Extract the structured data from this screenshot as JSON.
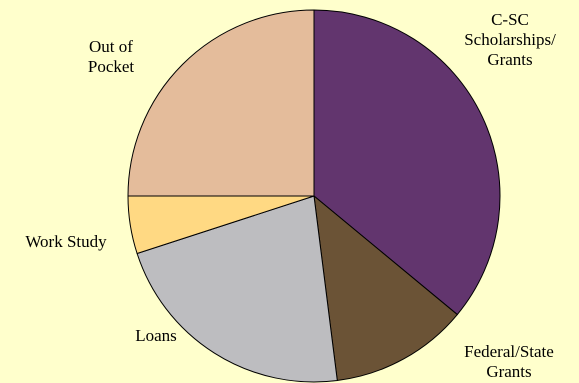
{
  "chart_data": {
    "type": "pie",
    "title": "",
    "slices": [
      {
        "label": [
          "C-SC",
          "Scholarships/",
          "Grants"
        ],
        "value": 36,
        "color": "#62356e"
      },
      {
        "label": [
          "Federal/State",
          "Grants"
        ],
        "value": 12,
        "color": "#6b5336"
      },
      {
        "label": [
          "Loans"
        ],
        "value": 22,
        "color": "#bdbdc0"
      },
      {
        "label": [
          "Work Study"
        ],
        "value": 5,
        "color": "#ffd983"
      },
      {
        "label": [
          "Out of",
          "Pocket"
        ],
        "value": 25,
        "color": "#e4bc9b"
      }
    ],
    "start_angle_deg": 0,
    "direction": "clockwise",
    "legend": "none"
  }
}
